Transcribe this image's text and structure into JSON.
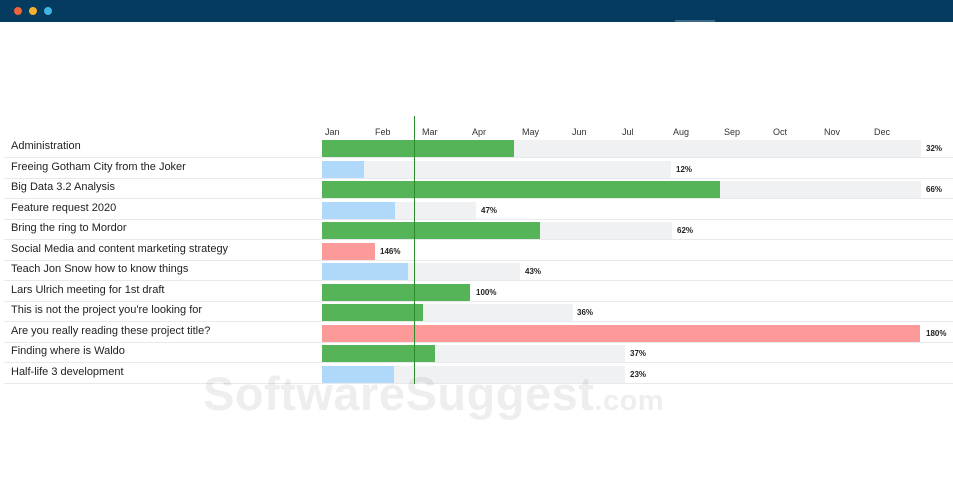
{
  "window": {
    "dots": [
      {
        "name": "close-dot",
        "color": "#f0643a"
      },
      {
        "name": "minimize-dot",
        "color": "#f4b12d"
      },
      {
        "name": "zoom-dot",
        "color": "#3fb6e4"
      }
    ]
  },
  "timeline": {
    "months": [
      "Jan",
      "Feb",
      "Mar",
      "Apr",
      "May",
      "Jun",
      "Jul",
      "Aug",
      "Sep",
      "Oct",
      "Nov",
      "Dec"
    ]
  },
  "colors": {
    "on_track": "#56b458",
    "upcoming": "#b0d8fb",
    "over_budget": "#fb9a98",
    "track": "#eff1f2",
    "today_line": "#2e8b2e"
  },
  "projects": [
    {
      "name": "Administration",
      "status": "on_track",
      "percent_label": "32%"
    },
    {
      "name": "Freeing Gotham City from the Joker",
      "status": "upcoming",
      "percent_label": "12%"
    },
    {
      "name": "Big Data 3.2 Analysis",
      "status": "on_track",
      "percent_label": "66%"
    },
    {
      "name": "Feature request 2020",
      "status": "upcoming",
      "percent_label": "47%"
    },
    {
      "name": "Bring the ring to Mordor",
      "status": "on_track",
      "percent_label": "62%"
    },
    {
      "name": "Social Media and content marketing strategy",
      "status": "over_budget",
      "percent_label": "146%"
    },
    {
      "name": "Teach Jon Snow how to know things",
      "status": "upcoming",
      "percent_label": "43%"
    },
    {
      "name": "Lars Ulrich meeting for 1st draft",
      "status": "on_track",
      "percent_label": "100%"
    },
    {
      "name": "This is not the project you're looking for",
      "status": "on_track",
      "percent_label": "36%"
    },
    {
      "name": "Are you really reading these project title?",
      "status": "over_budget",
      "percent_label": "180%"
    },
    {
      "name": "Finding where is Waldo",
      "status": "on_track",
      "percent_label": "37%"
    },
    {
      "name": "Half-life 3 development",
      "status": "upcoming",
      "percent_label": "23%"
    }
  ],
  "watermark": {
    "brand": "SoftwareSuggest",
    "domain": ".com"
  }
}
